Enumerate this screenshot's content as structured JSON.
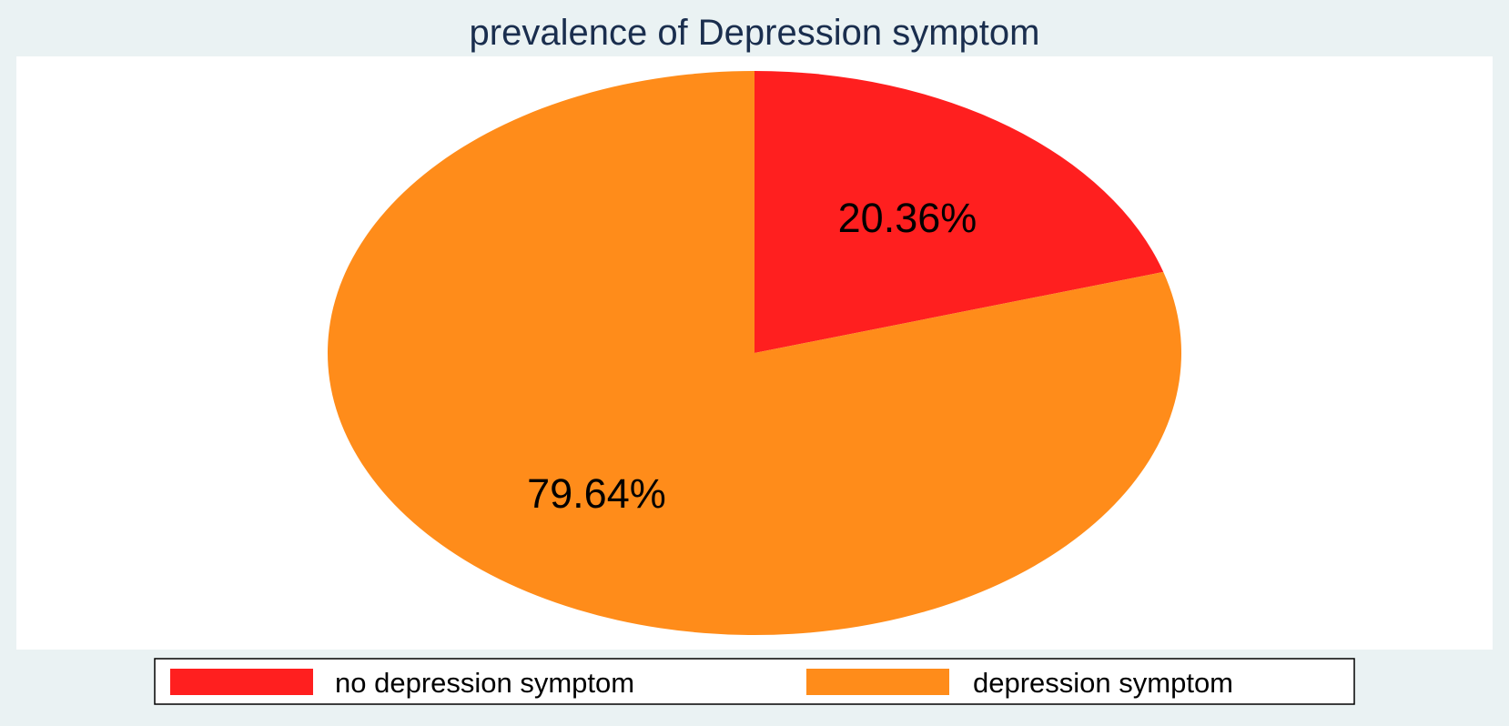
{
  "chart_data": {
    "type": "pie",
    "title": "prevalence of Depression symptom",
    "slices": [
      {
        "name": "no depression symptom",
        "value": 20.36,
        "label": "20.36%",
        "color": "#ff1f1f"
      },
      {
        "name": "depression symptom",
        "value": 79.64,
        "label": "79.64%",
        "color": "#ff8c1a"
      }
    ],
    "start": "12 o'clock",
    "direction": "clockwise",
    "legend": {
      "position": "bottom",
      "columns": 2
    }
  },
  "colors": {
    "background": "#eaf2f3",
    "plot_background": "#ffffff",
    "title": "#1a2e4e"
  }
}
